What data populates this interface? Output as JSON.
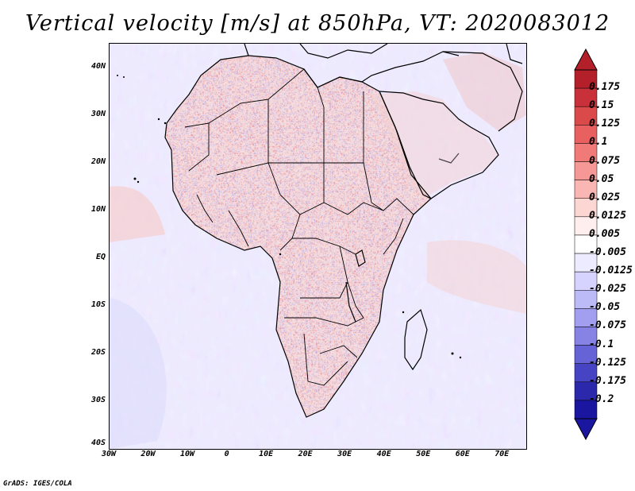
{
  "title": "Vertical velocity [m/s] at 850hPa, VT: 2020083012",
  "credit": "GrADS: IGES/COLA",
  "map": {
    "region": "Africa",
    "lon_range": [
      -30,
      76
    ],
    "lat_range": [
      -40,
      45
    ],
    "lat_ticks": [
      "40N",
      "30N",
      "20N",
      "10N",
      "EQ",
      "10S",
      "20S",
      "30S",
      "40S"
    ],
    "lat_values": [
      40,
      30,
      20,
      10,
      0,
      -10,
      -20,
      -30,
      -40
    ],
    "lon_ticks": [
      "30W",
      "20W",
      "10W",
      "0",
      "10E",
      "20E",
      "30E",
      "40E",
      "50E",
      "60E",
      "70E"
    ],
    "lon_values": [
      -30,
      -20,
      -10,
      0,
      10,
      20,
      30,
      40,
      50,
      60,
      70
    ]
  },
  "colorbar": {
    "labels": [
      "0.175",
      "0.15",
      "0.125",
      "0.1",
      "0.075",
      "0.05",
      "0.025",
      "0.0125",
      "0.005",
      "-0.005",
      "-0.0125",
      "-0.025",
      "-0.05",
      "-0.075",
      "-0.1",
      "-0.125",
      "-0.175",
      "-0.2"
    ],
    "colors": [
      "#b4202a",
      "#c8303a",
      "#da4a4a",
      "#e86060",
      "#f07a78",
      "#f59896",
      "#f9b6b2",
      "#fcd6d2",
      "#ffeeee",
      "#ffffff",
      "#ecebff",
      "#d6d4ff",
      "#bdbaf8",
      "#a29ff0",
      "#8683e4",
      "#6663d6",
      "#4744c4",
      "#2c28ac",
      "#1a16a0"
    ],
    "max_color": "#b4202a",
    "min_color": "#1a16a0"
  }
}
